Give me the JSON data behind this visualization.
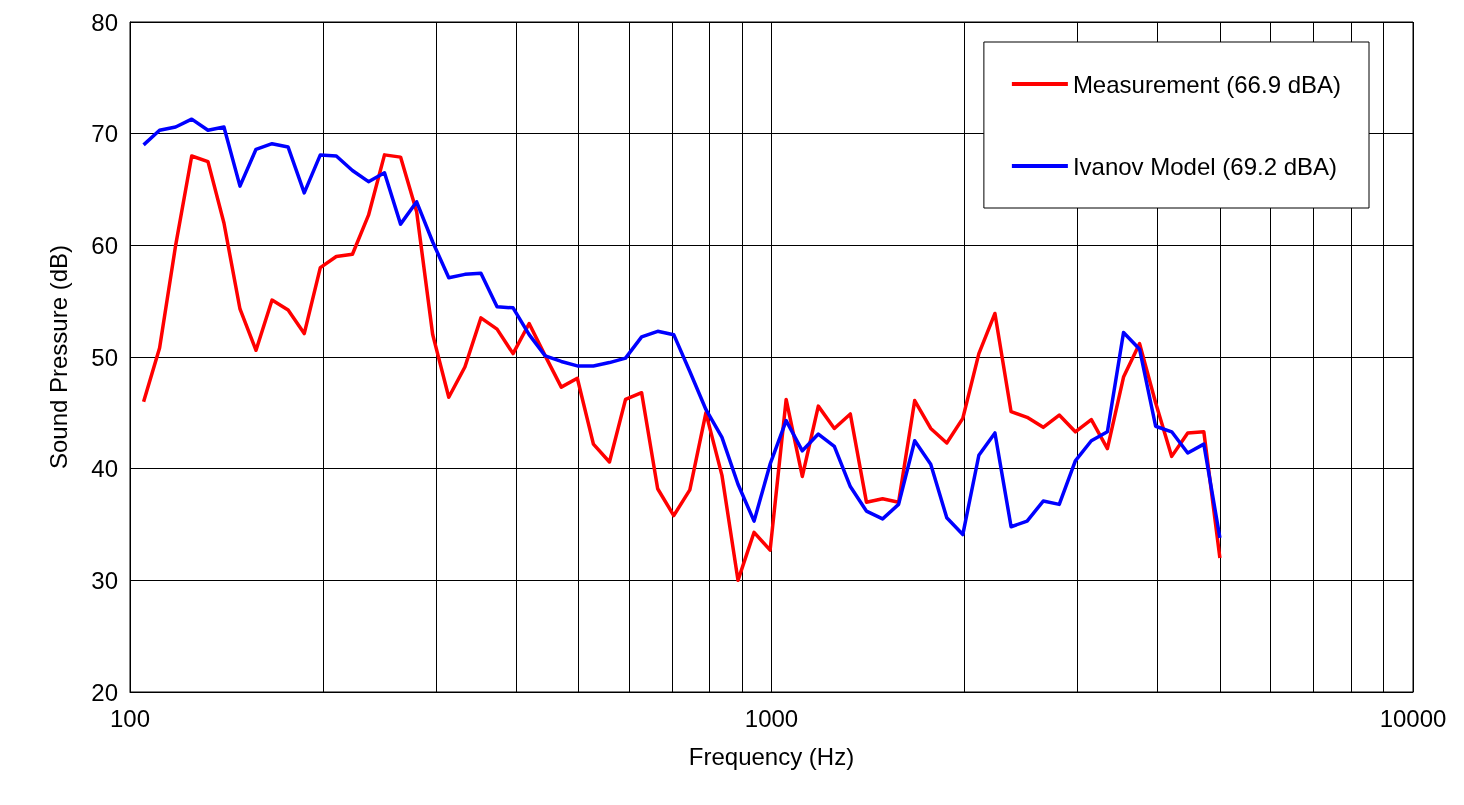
{
  "chart_data": {
    "type": "line",
    "xlabel": "Frequency (Hz)",
    "ylabel": "Sound Pressure (dB)",
    "log": "x",
    "grid": true,
    "legend": "top right",
    "marker": "none",
    "line_style": "solid",
    "xlim": [
      100,
      10000
    ],
    "ylim": [
      20,
      80
    ],
    "xticks": [
      100,
      {
        "value": 200,
        "label": null
      },
      {
        "value": 300,
        "label": null
      },
      {
        "value": 400,
        "label": null
      },
      {
        "value": 500,
        "label": null
      },
      {
        "value": 600,
        "label": null
      },
      {
        "value": 700,
        "label": null
      },
      {
        "value": 800,
        "label": null
      },
      {
        "value": 900,
        "label": null
      },
      1000,
      {
        "value": 2000,
        "label": null
      },
      {
        "value": 3000,
        "label": null
      },
      {
        "value": 4000,
        "label": null
      },
      {
        "value": 5000,
        "label": null
      },
      {
        "value": 6000,
        "label": null
      },
      {
        "value": 7000,
        "label": null
      },
      {
        "value": 8000,
        "label": null
      },
      {
        "value": 9000,
        "label": null
      },
      10000
    ],
    "yticks": [
      20,
      30,
      40,
      50,
      60,
      70,
      80
    ],
    "x": [
      105.0,
      111.2,
      117.8,
      124.8,
      132.3,
      140.1,
      148.4,
      157.2,
      166.5,
      176.4,
      186.9,
      198.0,
      209.7,
      222.2,
      235.4,
      249.3,
      264.1,
      279.8,
      296.4,
      314.0,
      332.7,
      352.4,
      373.4,
      395.5,
      419.0,
      443.9,
      470.2,
      498.1,
      527.7,
      559.0,
      592.2,
      627.4,
      664.6,
      704.1,
      745.9,
      790.2,
      837.1,
      886.7,
      939.4,
      995.0,
      1054,
      1117,
      1183,
      1253,
      1327,
      1406,
      1490,
      1578,
      1672,
      1771,
      1876,
      1987,
      2105,
      2230,
      2363,
      2503,
      2652,
      2809,
      2976,
      3152,
      3339,
      3538,
      3748,
      3970,
      4206,
      4455,
      4720,
      5000
    ],
    "series": [
      {
        "name": "Measurement (66.9 dBA)",
        "color": "#ff0000",
        "values": [
          46.0,
          50.8,
          60.0,
          68.0,
          67.5,
          62.0,
          54.3,
          50.6,
          55.1,
          54.2,
          52.1,
          58.0,
          59.0,
          59.2,
          62.7,
          68.1,
          67.9,
          63.0,
          52.0,
          46.4,
          49.1,
          53.5,
          52.5,
          50.3,
          53.0,
          50.1,
          47.3,
          48.1,
          42.2,
          40.6,
          46.2,
          46.8,
          38.2,
          35.8,
          38.1,
          45.0,
          39.4,
          30.0,
          34.3,
          32.7,
          46.2,
          39.3,
          45.6,
          43.6,
          44.9,
          37.0,
          37.3,
          37.0,
          46.1,
          43.6,
          42.3,
          44.5,
          50.3,
          53.9,
          45.1,
          44.6,
          43.7,
          44.8,
          43.3,
          44.4,
          41.8,
          48.2,
          51.2,
          45.9,
          41.1,
          43.2,
          43.3,
          32.0
        ]
      },
      {
        "name": "Ivanov Model (69.2 dBA)",
        "color": "#0000ff",
        "values": [
          69.0,
          70.3,
          70.6,
          71.3,
          70.3,
          70.6,
          65.3,
          68.6,
          69.1,
          68.8,
          64.7,
          68.1,
          68.0,
          66.7,
          65.7,
          66.5,
          61.9,
          63.9,
          60.3,
          57.1,
          57.4,
          57.5,
          54.5,
          54.4,
          52.0,
          50.1,
          49.6,
          49.2,
          49.2,
          49.5,
          49.9,
          51.8,
          52.3,
          52.0,
          48.7,
          45.3,
          42.8,
          38.6,
          35.3,
          40.4,
          44.3,
          41.6,
          43.1,
          42.0,
          38.4,
          36.2,
          35.5,
          36.8,
          42.5,
          40.4,
          35.6,
          34.1,
          41.2,
          43.2,
          34.8,
          35.3,
          37.1,
          36.8,
          40.7,
          42.5,
          43.3,
          52.2,
          50.7,
          43.8,
          43.3,
          41.4,
          42.2,
          33.8
        ]
      }
    ]
  }
}
